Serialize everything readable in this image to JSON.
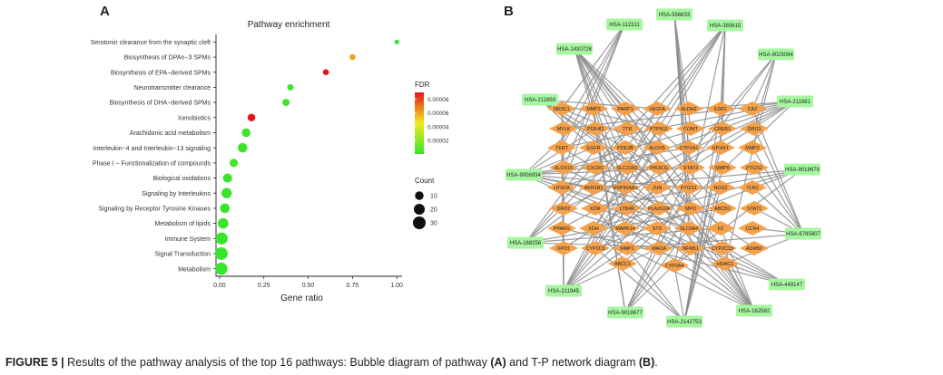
{
  "panel_a": {
    "letter": "A",
    "chart_data": {
      "type": "scatter",
      "title": "Pathway enrichment",
      "xlabel": "Gene ratio",
      "ylabel": "",
      "xlim": [
        -0.02,
        1.03
      ],
      "xticks": [
        "0.00",
        "0.25",
        "0.50",
        "0.75",
        "1.00"
      ],
      "xtick_values": [
        0,
        0.25,
        0.5,
        0.75,
        1.0
      ],
      "categories": [
        "Serotonin clearance from the synaptic cleft",
        "Biosynthesis of DPAn−3 SPMs",
        "Biosynthesis of EPA−derived SPMs",
        "Neurotransmitter clearance",
        "Biosynthesis of DHA−derived SPMs",
        "Xenobiotics",
        "Arachidonic acid metabolism",
        "Interleukin−4 and Interleukin−13 signaling",
        "Phase I − Functionalization of compounds",
        "Biological oxidations",
        "Signaling by Interleukins",
        "Signaling by Receptor Tyrosine Kinases",
        "Metabolism of lipids",
        "Immune System",
        "Signal Transduction",
        "Metabolism"
      ],
      "gene_ratio": [
        1.0,
        0.75,
        0.6,
        0.4,
        0.375,
        0.18,
        0.15,
        0.13,
        0.08,
        0.045,
        0.04,
        0.03,
        0.02,
        0.012,
        0.01,
        0.01
      ],
      "count": [
        1,
        3,
        3,
        4,
        6,
        7,
        11,
        14,
        9,
        12,
        17,
        14,
        18,
        26,
        30,
        27
      ],
      "fdr": [
        1e-06,
        6e-05,
        9e-05,
        2e-06,
        3e-06,
        9e-05,
        3e-06,
        2e-06,
        3e-06,
        1e-06,
        1e-06,
        1e-06,
        1e-06,
        1e-06,
        1e-06,
        1e-06
      ],
      "colorbar": {
        "title": "FDR",
        "min": 0,
        "max": 9e-05,
        "ticks": [
          "0.00008",
          "0.00006",
          "0.00004",
          "0.00002"
        ],
        "tick_values": [
          8e-05,
          6e-05,
          4e-05,
          2e-05
        ],
        "colors": [
          "#33e52b",
          "#f0ec1e",
          "#e8141b"
        ]
      },
      "size_legend": {
        "title": "Count",
        "labels": [
          "10",
          "20",
          "30"
        ],
        "values": [
          10,
          20,
          30
        ]
      },
      "grid": false,
      "legend_position": "right"
    }
  },
  "panel_b": {
    "letter": "B",
    "colors": {
      "pathway": "#a6f7a0",
      "target": "#f4a14b",
      "edge": "#8c8c8c"
    },
    "pathways": [
      "HSA-112311",
      "HSA-556833",
      "HSA-380615",
      "HSA-1430728",
      "HSA-9025094",
      "HSA-211859",
      "HSA-211981",
      "HSA-9006934",
      "HSA-9018679",
      "HSA-168256",
      "HSA-6785807",
      "HSA-211945",
      "HSA-449147",
      "HSA-9018677",
      "HSA-2142753",
      "HSA-162582"
    ],
    "targets": [
      "NR3C1",
      "MMP3",
      "PARP1",
      "VEGFA",
      "ALDH2",
      "ESR1",
      "CA2",
      "MYLK",
      "PDE4D",
      "TTR",
      "PTPN11",
      "COMT",
      "CREB1",
      "DRD3",
      "TERT",
      "EGFR",
      "PDE3B",
      "ALOX5",
      "CYP1A1",
      "EPHX1",
      "MMP2",
      "ALOX15",
      "CXCR1",
      "SLC22A3",
      "PIK3CG",
      "STAT3",
      "MMP9",
      "PTGS2",
      "HTR2A",
      "AKR1B1",
      "HSP90AA1",
      "JUN",
      "PTGS1",
      "NOS2",
      "TLR2",
      "DRD2",
      "KDR",
      "LTB4R",
      "PLA2G2A",
      "MPO",
      "ABCB1",
      "STAT1",
      "PPARG",
      "XDH",
      "MAPK14",
      "STS",
      "SLC6A4",
      "F2",
      "CCR4",
      "XPO1",
      "CYP2C9",
      "MMP1",
      "MAOA",
      "NFKB1",
      "CYP2C19",
      "ADRB2",
      "ABCC1",
      "CYP3A4",
      "HDAC1"
    ]
  },
  "caption": {
    "lead": "FIGURE 5 |",
    "text1": " Results of the pathway analysis of the top 16 pathways: Bubble diagram of pathway ",
    "ref_a": "(A)",
    "text2": " and T-P network diagram ",
    "ref_b": "(B)",
    "text3": "."
  }
}
